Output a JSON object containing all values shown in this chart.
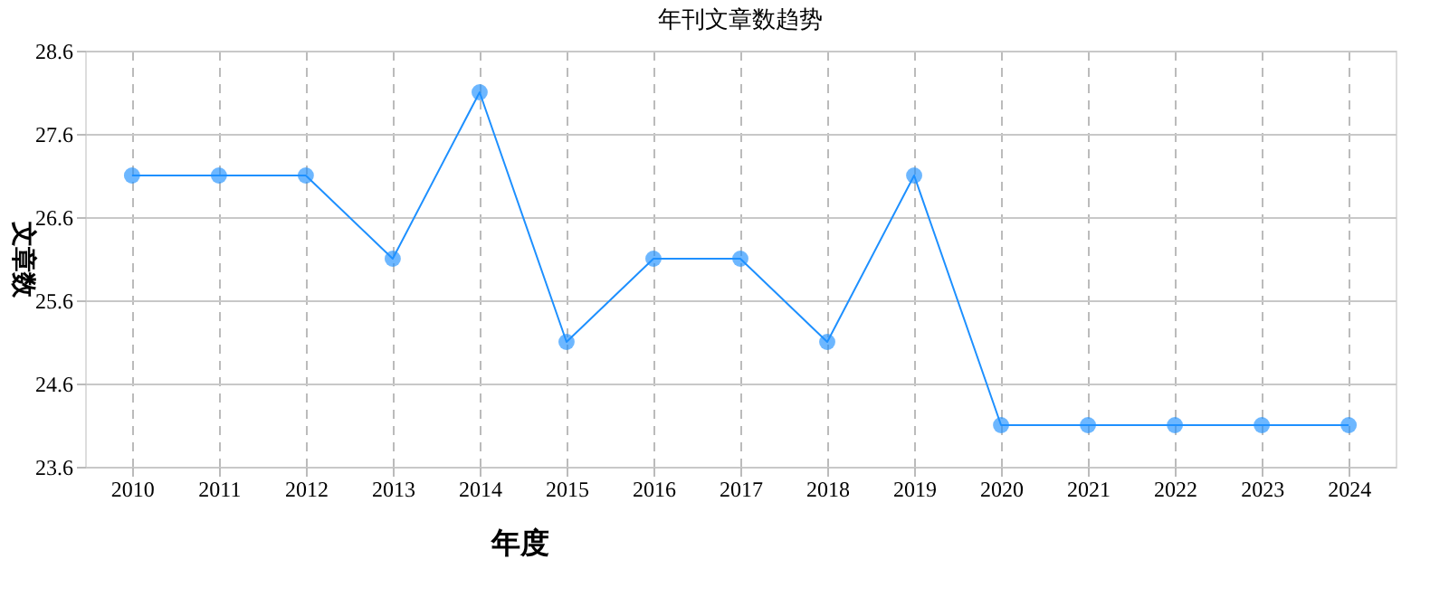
{
  "chart_data": {
    "type": "line",
    "title": "年刊文章数趋势",
    "xlabel": "年度",
    "ylabel": "文章数",
    "categories": [
      "2010",
      "2011",
      "2012",
      "2013",
      "2014",
      "2015",
      "2016",
      "2017",
      "2018",
      "2019",
      "2020",
      "2021",
      "2022",
      "2023",
      "2024"
    ],
    "series": [
      {
        "color": "#1e90ff",
        "values": [
          27.1,
          27.1,
          27.1,
          26.1,
          28.1,
          25.1,
          26.1,
          26.1,
          25.1,
          27.1,
          24.1,
          24.1,
          24.1,
          24.1,
          24.1
        ]
      }
    ],
    "ylim": [
      23.6,
      28.6
    ],
    "yticks": [
      23.6,
      24.6,
      25.6,
      26.6,
      27.6,
      28.6
    ],
    "grid": true,
    "marker": "circle",
    "line_style": "solid"
  }
}
